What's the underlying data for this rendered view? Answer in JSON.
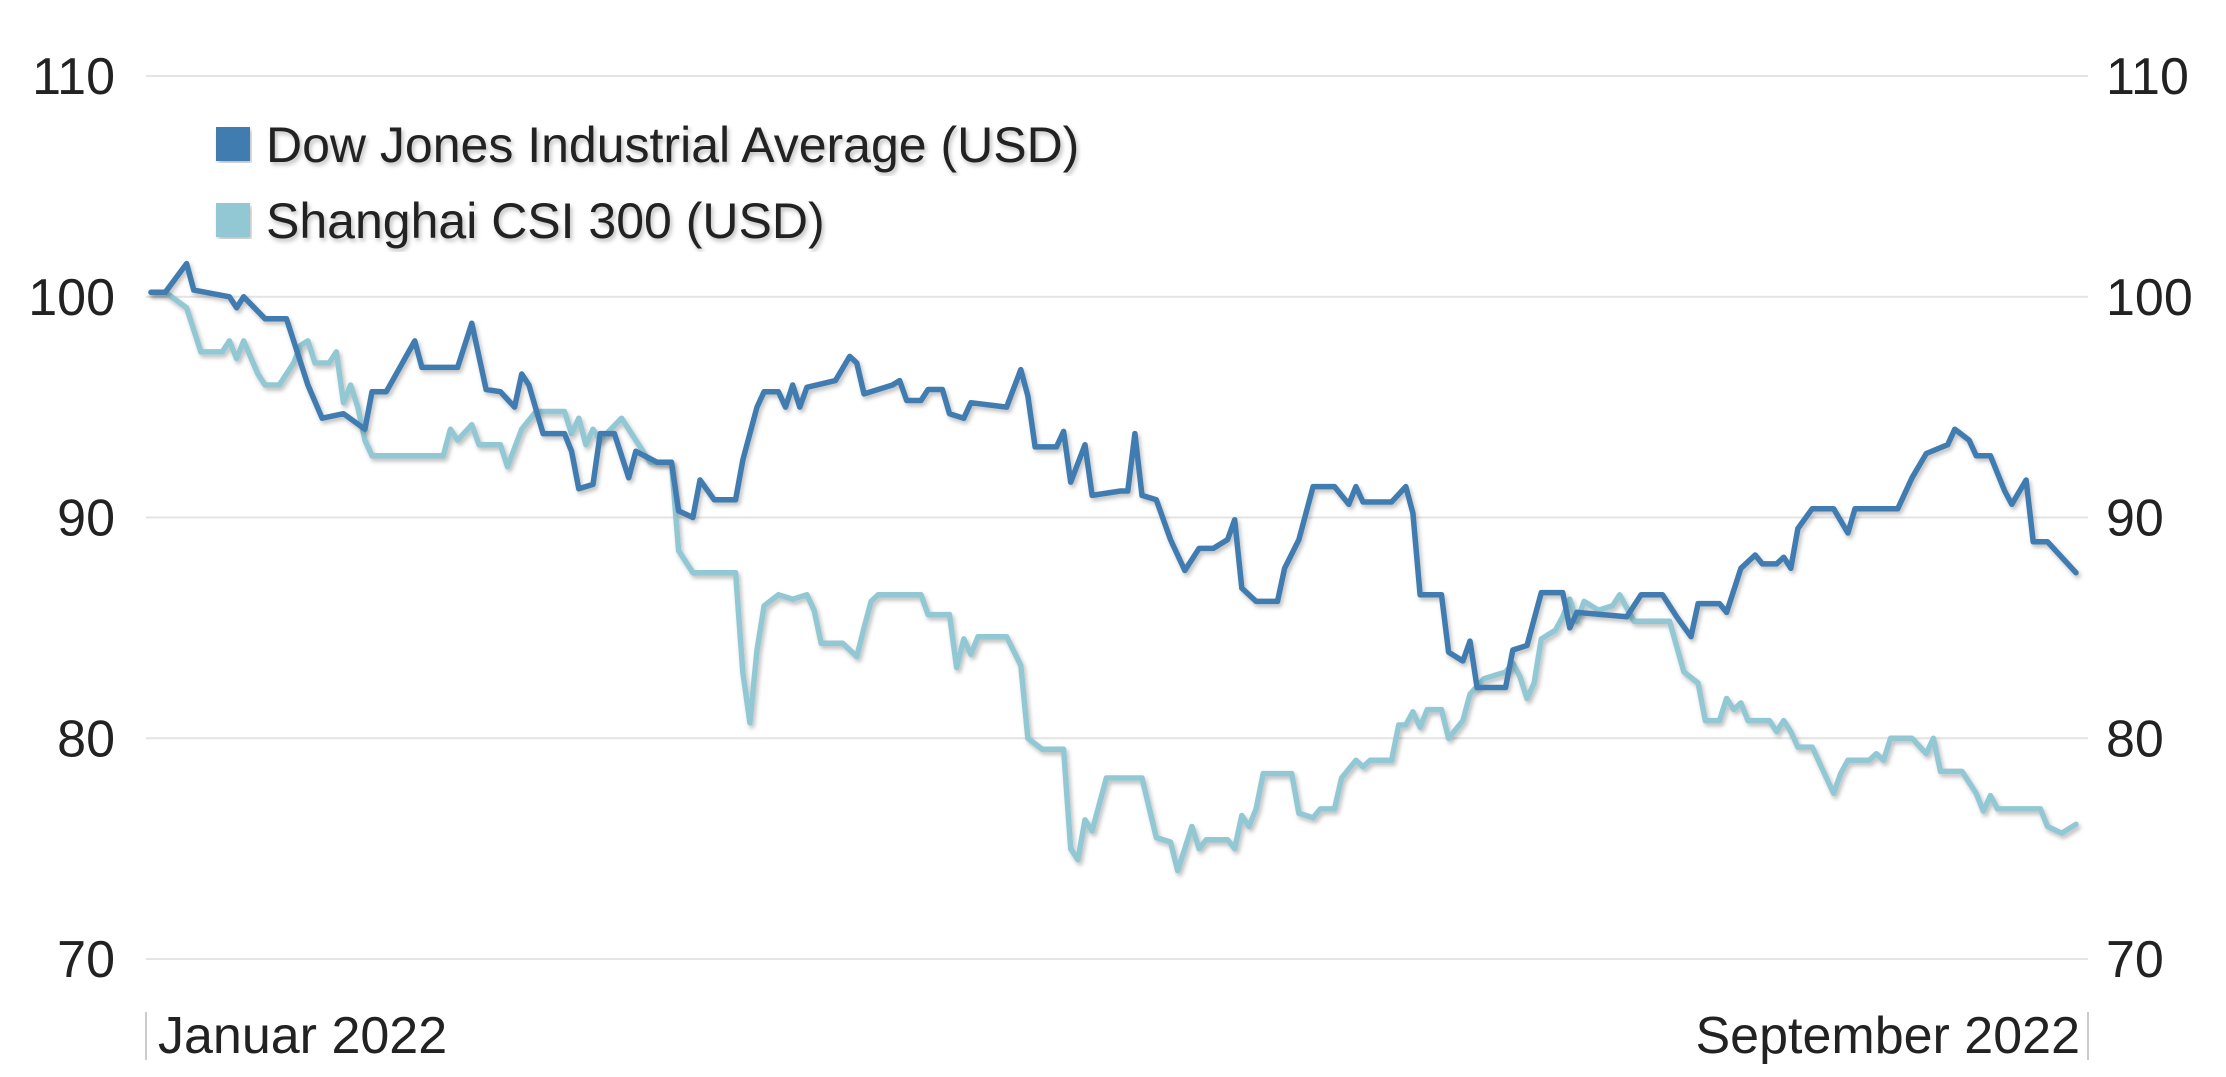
{
  "chart_data": {
    "type": "line",
    "title": "",
    "xlabel": "",
    "ylabel": "",
    "ylim": [
      70,
      110
    ],
    "yticks": [
      70,
      80,
      90,
      100,
      110
    ],
    "ytick_labels": [
      "70",
      "80",
      "90",
      "100",
      "110"
    ],
    "y_axis_sides": "left-and-right",
    "xlim": [
      "2022-01-03",
      "2022-09-30"
    ],
    "x_tick_labels": [
      "Januar 2022",
      "September 2022"
    ],
    "grid": "horizontal",
    "legend_position": "top-left",
    "series": [
      {
        "name": "Dow Jones Industrial Average (USD)",
        "color": "#3f7cb0",
        "x": [
          "2022-01-03",
          "2022-01-05",
          "2022-01-08",
          "2022-01-09",
          "2022-01-14",
          "2022-01-15",
          "2022-01-16",
          "2022-01-19",
          "2022-01-22",
          "2022-01-25",
          "2022-01-27",
          "2022-01-30",
          "2022-02-02",
          "2022-02-03",
          "2022-02-05",
          "2022-02-09",
          "2022-02-10",
          "2022-02-15",
          "2022-02-17",
          "2022-02-19",
          "2022-02-21",
          "2022-02-23",
          "2022-02-24",
          "2022-02-25",
          "2022-02-27",
          "2022-03-02",
          "2022-03-03",
          "2022-03-04",
          "2022-03-06",
          "2022-03-07",
          "2022-03-09",
          "2022-03-11",
          "2022-03-12",
          "2022-03-15",
          "2022-03-17",
          "2022-03-18",
          "2022-03-20",
          "2022-03-21",
          "2022-03-23",
          "2022-03-26",
          "2022-03-27",
          "2022-03-29",
          "2022-03-30",
          "2022-04-01",
          "2022-04-02",
          "2022-04-03",
          "2022-04-04",
          "2022-04-05",
          "2022-04-09",
          "2022-04-11",
          "2022-04-12",
          "2022-04-13",
          "2022-04-17",
          "2022-04-18",
          "2022-04-19",
          "2022-04-21",
          "2022-04-22",
          "2022-04-24",
          "2022-04-25",
          "2022-04-27",
          "2022-04-28",
          "2022-05-03",
          "2022-05-05",
          "2022-05-06",
          "2022-05-07",
          "2022-05-10",
          "2022-05-11",
          "2022-05-12",
          "2022-05-14",
          "2022-05-15",
          "2022-05-19",
          "2022-05-20",
          "2022-05-21",
          "2022-05-22",
          "2022-05-24",
          "2022-05-26",
          "2022-05-28",
          "2022-05-30",
          "2022-06-01",
          "2022-06-03",
          "2022-06-04",
          "2022-06-05",
          "2022-06-07",
          "2022-06-10",
          "2022-06-11",
          "2022-06-13",
          "2022-06-15",
          "2022-06-18",
          "2022-06-20",
          "2022-06-21",
          "2022-06-22",
          "2022-06-26",
          "2022-06-28",
          "2022-06-29",
          "2022-06-30",
          "2022-07-03",
          "2022-07-04",
          "2022-07-06",
          "2022-07-07",
          "2022-07-08",
          "2022-07-12",
          "2022-07-13",
          "2022-07-15",
          "2022-07-17",
          "2022-07-20",
          "2022-07-21",
          "2022-07-22",
          "2022-07-29",
          "2022-07-31",
          "2022-08-03",
          "2022-08-05",
          "2022-08-07",
          "2022-08-08",
          "2022-08-11",
          "2022-08-12",
          "2022-08-14",
          "2022-08-16",
          "2022-08-17",
          "2022-08-19",
          "2022-08-20",
          "2022-08-21",
          "2022-08-22",
          "2022-08-24",
          "2022-08-27",
          "2022-08-29",
          "2022-08-30",
          "2022-09-05",
          "2022-09-07",
          "2022-09-09",
          "2022-09-12",
          "2022-09-13",
          "2022-09-15",
          "2022-09-16",
          "2022-09-18",
          "2022-09-20",
          "2022-09-21",
          "2022-09-23",
          "2022-09-24",
          "2022-09-26",
          "2022-09-30"
        ],
        "values": [
          100.2,
          100.2,
          101.5,
          100.3,
          100,
          99.5,
          100,
          99,
          99,
          96,
          94.5,
          94.7,
          94,
          95.7,
          95.7,
          98,
          96.8,
          96.8,
          98.8,
          95.8,
          95.7,
          95,
          96.5,
          96,
          93.8,
          93.8,
          93,
          91.3,
          91.5,
          93.8,
          93.8,
          91.8,
          93,
          92.5,
          92.5,
          90.3,
          90,
          91.7,
          90.8,
          90.8,
          92.6,
          95,
          95.7,
          95.7,
          95,
          96,
          95,
          95.9,
          96.2,
          97.3,
          97,
          95.6,
          96,
          96.2,
          95.3,
          95.3,
          95.8,
          95.8,
          94.7,
          94.5,
          95.2,
          95,
          96.7,
          95.5,
          93.2,
          93.2,
          93.9,
          91.6,
          93.3,
          91,
          91.2,
          91.2,
          93.8,
          91,
          90.8,
          89,
          87.6,
          88.6,
          88.6,
          89,
          89.9,
          86.8,
          86.2,
          86.2,
          87.7,
          89,
          91.4,
          91.4,
          90.6,
          91.4,
          90.7,
          90.7,
          91.4,
          90.2,
          86.5,
          86.5,
          83.9,
          83.5,
          84.4,
          82.3,
          82.3,
          84,
          84.2,
          86.6,
          86.6,
          85,
          85.7,
          85.5,
          86.5,
          86.5,
          85.5,
          84.6,
          86.1,
          86.1,
          85.7,
          87.7,
          88.3,
          87.9,
          87.9,
          88.2,
          87.7,
          89.5,
          90.4,
          90.4,
          89.3,
          90.4,
          90.4,
          91.8,
          92.9,
          93.3,
          94,
          93.5,
          92.8,
          92.8,
          91.2,
          90.6,
          91.7,
          88.9,
          88.9,
          87.5
        ]
      },
      {
        "name": "Shanghai CSI 300 (USD)",
        "color": "#92c8d4",
        "x": [
          "2022-01-03",
          "2022-01-05",
          "2022-01-08",
          "2022-01-10",
          "2022-01-13",
          "2022-01-14",
          "2022-01-15",
          "2022-01-16",
          "2022-01-18",
          "2022-01-19",
          "2022-01-21",
          "2022-01-23",
          "2022-01-24",
          "2022-01-25",
          "2022-01-26",
          "2022-01-28",
          "2022-01-29",
          "2022-01-30",
          "2022-01-31",
          "2022-02-01",
          "2022-02-02",
          "2022-02-03",
          "2022-02-13",
          "2022-02-14",
          "2022-02-15",
          "2022-02-17",
          "2022-02-18",
          "2022-02-21",
          "2022-02-22",
          "2022-02-24",
          "2022-02-26",
          "2022-03-02",
          "2022-03-03",
          "2022-03-04",
          "2022-03-05",
          "2022-03-06",
          "2022-03-07",
          "2022-03-10",
          "2022-03-12",
          "2022-03-14",
          "2022-03-17",
          "2022-03-18",
          "2022-03-20",
          "2022-03-21",
          "2022-03-26",
          "2022-03-27",
          "2022-03-28",
          "2022-03-29",
          "2022-03-30",
          "2022-04-01",
          "2022-04-03",
          "2022-04-05",
          "2022-04-06",
          "2022-04-07",
          "2022-04-10",
          "2022-04-12",
          "2022-04-13",
          "2022-04-14",
          "2022-04-15",
          "2022-04-21",
          "2022-04-22",
          "2022-04-25",
          "2022-04-26",
          "2022-04-27",
          "2022-04-28",
          "2022-04-29",
          "2022-05-03",
          "2022-05-05",
          "2022-05-06",
          "2022-05-08",
          "2022-05-11",
          "2022-05-12",
          "2022-05-13",
          "2022-05-14",
          "2022-05-15",
          "2022-05-17",
          "2022-05-22",
          "2022-05-24",
          "2022-05-26",
          "2022-05-27",
          "2022-05-29",
          "2022-05-30",
          "2022-05-31",
          "2022-06-03",
          "2022-06-04",
          "2022-06-05",
          "2022-06-06",
          "2022-06-07",
          "2022-06-08",
          "2022-06-12",
          "2022-06-13",
          "2022-06-15",
          "2022-06-16",
          "2022-06-18",
          "2022-06-19",
          "2022-06-21",
          "2022-06-22",
          "2022-06-23",
          "2022-06-26",
          "2022-06-27",
          "2022-06-28",
          "2022-06-29",
          "2022-06-30",
          "2022-07-01",
          "2022-07-03",
          "2022-07-04",
          "2022-07-06",
          "2022-07-07",
          "2022-07-09",
          "2022-07-12",
          "2022-07-13",
          "2022-07-14",
          "2022-07-15",
          "2022-07-16",
          "2022-07-17",
          "2022-07-19",
          "2022-07-20",
          "2022-07-21",
          "2022-07-22",
          "2022-07-23",
          "2022-07-25",
          "2022-07-27",
          "2022-07-28",
          "2022-07-29",
          "2022-07-30",
          "2022-08-04",
          "2022-08-06",
          "2022-08-08",
          "2022-08-09",
          "2022-08-11",
          "2022-08-12",
          "2022-08-13",
          "2022-08-14",
          "2022-08-15",
          "2022-08-18",
          "2022-08-19",
          "2022-08-20",
          "2022-08-21",
          "2022-08-22",
          "2022-08-24",
          "2022-08-26",
          "2022-08-27",
          "2022-08-28",
          "2022-08-29",
          "2022-09-01",
          "2022-09-02",
          "2022-09-03",
          "2022-09-04",
          "2022-09-07",
          "2022-09-09",
          "2022-09-10",
          "2022-09-11",
          "2022-09-14",
          "2022-09-16",
          "2022-09-17",
          "2022-09-18",
          "2022-09-19",
          "2022-09-25",
          "2022-09-26",
          "2022-09-28",
          "2022-09-30"
        ],
        "values": [
          100.2,
          100.2,
          99.5,
          97.5,
          97.5,
          98,
          97.2,
          98,
          96.5,
          96,
          96,
          97,
          97.8,
          98,
          97,
          97,
          97.5,
          95.2,
          96,
          95,
          93.5,
          92.8,
          92.8,
          94,
          93.5,
          94.2,
          93.3,
          93.3,
          92.3,
          94,
          94.8,
          94.8,
          93.8,
          94.5,
          93.3,
          94,
          93.5,
          94.5,
          93.5,
          92.5,
          92.5,
          88.5,
          87.5,
          87.5,
          87.5,
          83,
          80.7,
          84,
          86,
          86.5,
          86.3,
          86.5,
          85.8,
          84.3,
          84.3,
          83.7,
          85,
          86.2,
          86.5,
          86.5,
          85.6,
          85.6,
          83.2,
          84.5,
          83.8,
          84.6,
          84.6,
          83.3,
          80,
          79.5,
          79.5,
          75,
          74.5,
          76.3,
          75.8,
          78.2,
          78.2,
          75.5,
          75.3,
          74,
          76,
          75,
          75.4,
          75.4,
          75,
          76.5,
          76,
          76.8,
          78.4,
          78.4,
          76.6,
          76.4,
          76.8,
          76.8,
          78.2,
          79,
          78.7,
          79,
          79,
          80.6,
          80.6,
          81.2,
          80.5,
          81.3,
          81.3,
          80,
          80.8,
          82,
          82.7,
          83,
          83.4,
          82.8,
          81.8,
          82.5,
          84.5,
          84.9,
          85.5,
          86.3,
          85.3,
          86.2,
          85.8,
          86,
          86.5,
          85.9,
          85.3,
          85.3,
          83,
          82.5,
          80.8,
          80.8,
          81.8,
          81.3,
          81.6,
          80.8,
          80.8,
          80.3,
          80.8,
          80.3,
          79.6,
          79.6,
          78.2,
          77.5,
          78.4,
          79,
          79,
          79.3,
          79,
          80,
          80,
          79.3,
          80,
          78.5,
          78.5,
          77.5,
          76.7,
          77.4,
          76.8,
          76.8,
          76,
          75.7,
          76.1
        ]
      }
    ]
  }
}
